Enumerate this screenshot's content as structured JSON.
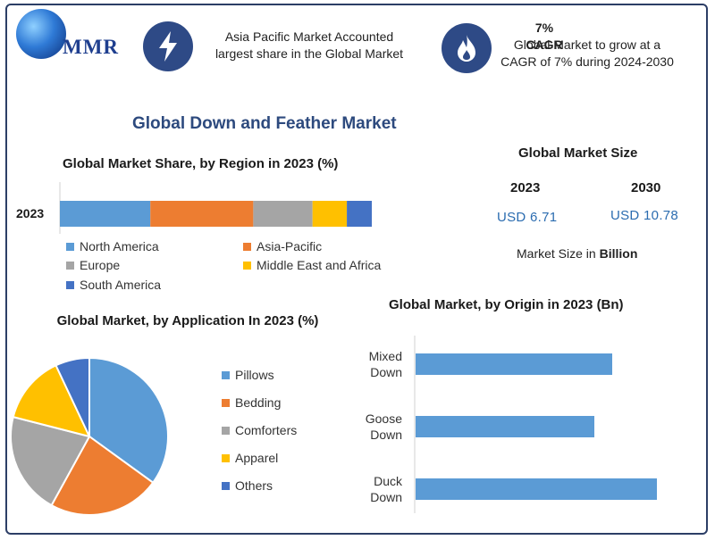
{
  "header": {
    "logo_text": "MMR",
    "region_note": "Asia Pacific Market Accounted largest share in the Global Market",
    "cagr_title": "7% CAGR",
    "cagr_note": "Global Market to grow at a CAGR of 7% during 2024-2030"
  },
  "title": "Global Down and Feather Market",
  "market_size": {
    "title": "Global Market Size",
    "years": [
      "2023",
      "2030"
    ],
    "values": [
      "USD 6.71",
      "USD 10.78"
    ],
    "unit_prefix": "Market Size in ",
    "unit_bold": "Billion"
  },
  "colors": {
    "blue": "#5b9bd5",
    "orange": "#ed7d31",
    "gray": "#a5a5a5",
    "yellow": "#ffc000",
    "darkblue": "#4472c4"
  },
  "chart_data": [
    {
      "type": "bar",
      "orientation": "horizontal-stacked",
      "title": "Global Market Share, by Region in 2023 (%)",
      "categories": [
        "2023"
      ],
      "series": [
        {
          "name": "North America",
          "values": [
            29
          ]
        },
        {
          "name": "Asia-Pacific",
          "values": [
            33
          ]
        },
        {
          "name": "Europe",
          "values": [
            19
          ]
        },
        {
          "name": "Middle East and Africa",
          "values": [
            11
          ]
        },
        {
          "name": "South America",
          "values": [
            8
          ]
        }
      ],
      "legend": "bottom"
    },
    {
      "type": "pie",
      "title": "Global Market, by Application  In 2023 (%)",
      "categories": [
        "Pillows",
        "Bedding",
        "Comforters",
        "Apparel",
        "Others"
      ],
      "values": [
        35,
        23,
        21,
        14,
        7
      ],
      "legend": "right"
    },
    {
      "type": "bar",
      "orientation": "horizontal",
      "title": "Global Market, by Origin in 2023 (Bn)",
      "categories": [
        "Mixed Down",
        "Goose Down",
        "Duck Down"
      ],
      "category_lines": [
        [
          "Mixed",
          "Down"
        ],
        [
          "Goose",
          "Down"
        ],
        [
          "Duck",
          "Down"
        ]
      ],
      "values": [
        2.2,
        2.0,
        2.7
      ]
    }
  ]
}
